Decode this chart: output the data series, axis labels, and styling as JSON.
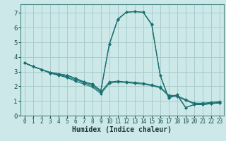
{
  "xlabel": "Humidex (Indice chaleur)",
  "xlim": [
    -0.5,
    23.5
  ],
  "ylim": [
    0,
    7.6
  ],
  "xticks": [
    0,
    1,
    2,
    3,
    4,
    5,
    6,
    7,
    8,
    9,
    10,
    11,
    12,
    13,
    14,
    15,
    16,
    17,
    18,
    19,
    20,
    21,
    22,
    23
  ],
  "yticks": [
    0,
    1,
    2,
    3,
    4,
    5,
    6,
    7
  ],
  "bg_color": "#cce8e8",
  "grid_color": "#aacccc",
  "line_color": "#1a7070",
  "lines": [
    [
      3.6,
      3.35,
      3.15,
      2.9,
      2.75,
      2.6,
      2.35,
      2.15,
      1.95,
      1.5,
      2.2,
      2.3,
      2.25,
      2.2,
      2.15,
      2.05,
      1.9,
      1.35,
      1.3,
      1.05,
      0.8,
      0.8,
      0.85,
      0.9
    ],
    [
      3.6,
      3.35,
      3.15,
      2.9,
      2.8,
      2.65,
      2.45,
      2.25,
      2.05,
      1.6,
      2.3,
      2.35,
      2.3,
      2.28,
      2.2,
      2.1,
      1.95,
      1.4,
      1.35,
      1.1,
      0.85,
      0.85,
      0.9,
      0.95
    ],
    [
      3.6,
      3.35,
      3.15,
      2.95,
      2.85,
      2.75,
      2.55,
      2.3,
      2.15,
      1.7,
      4.85,
      6.55,
      7.05,
      7.1,
      7.05,
      6.2,
      2.75,
      1.2,
      1.42,
      0.55,
      0.75,
      0.75,
      0.82,
      0.87
    ],
    [
      3.6,
      3.35,
      3.15,
      2.95,
      2.85,
      2.75,
      2.55,
      2.3,
      2.15,
      1.7,
      4.9,
      6.6,
      7.05,
      7.1,
      7.05,
      6.25,
      2.75,
      1.2,
      1.42,
      0.55,
      0.75,
      0.75,
      0.82,
      0.87
    ]
  ]
}
